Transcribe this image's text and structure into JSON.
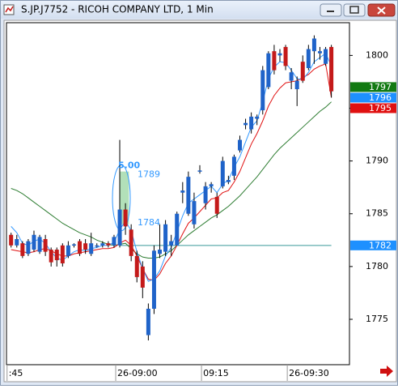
{
  "chart_data": {
    "type": "candlestick",
    "title": "S.JP.J7752 - RICOH COMPANY LTD, 1 Min",
    "categories": [
      ":45",
      null,
      null,
      null,
      null,
      null,
      null,
      null,
      null,
      null,
      null,
      null,
      null,
      null,
      null,
      null,
      null,
      null,
      null,
      "26-09:00",
      null,
      null,
      null,
      null,
      null,
      null,
      null,
      null,
      null,
      null,
      null,
      null,
      null,
      null,
      "09:15",
      null,
      null,
      null,
      null,
      null,
      null,
      null,
      null,
      null,
      null,
      null,
      null,
      null,
      null,
      "26-09:30",
      null,
      null,
      null,
      null,
      null,
      null,
      null
    ],
    "ohlc": {
      "up_color": "#1f63c9",
      "down_color": "#c41a1a",
      "open": [
        1783,
        1782,
        1782.2,
        1781.2,
        1781.6,
        1781.4,
        1782.6,
        1781.6,
        1781.6,
        1782,
        1781,
        1782,
        1782.4,
        1782.2,
        1781.2,
        1782,
        1782,
        1782.2,
        1782,
        1782,
        1785.4,
        1783.5,
        1781,
        1780,
        1773.5,
        1776,
        1781.2,
        1781.4,
        1782,
        1782,
        1787,
        1785,
        1784,
        1789,
        1786,
        1787.6,
        1786.6,
        1787.6,
        1788,
        1788.6,
        1791,
        1793.4,
        1793,
        1794,
        1794.8,
        1797,
        1800.4,
        1800,
        1800.8,
        1797.6,
        1796.8,
        1799.4,
        1798.8,
        1800.4,
        1800.2,
        1799.2,
        1800.8
      ],
      "high": [
        1783.2,
        1783,
        1782.4,
        1782.6,
        1783.4,
        1783,
        1783,
        1781.8,
        1781.8,
        1782.2,
        1782.4,
        1782.2,
        1782.6,
        1782.6,
        1783.2,
        1782.2,
        1782.4,
        1782.4,
        1783,
        1792,
        1786,
        1784,
        1781.5,
        1780.5,
        1776.5,
        1782,
        1784,
        1784.4,
        1783,
        1785.2,
        1788,
        1789,
        1787,
        1789.6,
        1788,
        1788,
        1787,
        1790.4,
        1788.6,
        1790.6,
        1792.4,
        1794,
        1794.6,
        1794.4,
        1799,
        1800.4,
        1801,
        1800.6,
        1801,
        1798.8,
        1798,
        1800,
        1801,
        1801.9,
        1800.8,
        1800.8,
        1801
      ],
      "low": [
        1781.8,
        1781.8,
        1780.8,
        1781,
        1781.4,
        1781.2,
        1781,
        1780,
        1780,
        1780,
        1780.8,
        1781.8,
        1781,
        1781.2,
        1781,
        1781.8,
        1781.8,
        1781.8,
        1781.8,
        1781.8,
        1783,
        1780.5,
        1778.5,
        1777,
        1773,
        1775.5,
        1780.8,
        1781,
        1781,
        1782,
        1786,
        1784.8,
        1783.6,
        1788.8,
        1785.4,
        1787,
        1784.6,
        1787.4,
        1787.8,
        1788.2,
        1790.8,
        1793,
        1792.6,
        1793.4,
        1794.4,
        1796.8,
        1798.2,
        1799.4,
        1798.6,
        1796.8,
        1795.2,
        1797.4,
        1798.6,
        1799.2,
        1799.6,
        1799,
        1796
      ],
      "close": [
        1782,
        1782.6,
        1781,
        1782.4,
        1783,
        1782.8,
        1781.4,
        1780.4,
        1780.6,
        1780.3,
        1782,
        1782.1,
        1781.2,
        1781.6,
        1782.2,
        1782,
        1782.2,
        1782,
        1782.8,
        1785.4,
        1783.8,
        1781,
        1779,
        1778,
        1776,
        1781.5,
        1781.6,
        1784,
        1782.4,
        1785,
        1787.2,
        1788.5,
        1786.2,
        1789.1,
        1787.6,
        1787.8,
        1785,
        1790,
        1788.2,
        1790.4,
        1792,
        1793.6,
        1794.2,
        1794.2,
        1798.6,
        1800.2,
        1798.6,
        1800.2,
        1799,
        1798.4,
        1797.6,
        1797.6,
        1800.6,
        1801.6,
        1800.4,
        1800.6,
        1796.6
      ]
    },
    "series": [
      {
        "color": "#2e7d32",
        "values": [
          1787.4,
          1787.2,
          1786.9,
          1786.5,
          1786.1,
          1785.7,
          1785.3,
          1784.9,
          1784.5,
          1784.1,
          1783.8,
          1783.5,
          1783.2,
          1783,
          1782.8,
          1782.5,
          1782.3,
          1782.1,
          1782,
          1782.1,
          1782.2,
          1781.7,
          1781.2,
          1780.9,
          1780.8,
          1780.8,
          1780.9,
          1781.2,
          1781.5,
          1782,
          1782.5,
          1783,
          1783.4,
          1783.8,
          1784.2,
          1784.6,
          1784.9,
          1785.3,
          1785.7,
          1786.2,
          1786.7,
          1787.3,
          1787.9,
          1788.5,
          1789.2,
          1789.9,
          1790.6,
          1791.2,
          1791.7,
          1792.2,
          1792.7,
          1793.2,
          1793.7,
          1794.2,
          1794.7,
          1795.1,
          1795.6
        ]
      },
      {
        "color": "#e01010",
        "values": [
          1781.6,
          1781.5,
          1781.4,
          1781.3,
          1781.4,
          1781.6,
          1781.7,
          1781.5,
          1781.2,
          1781,
          1781,
          1781.2,
          1781.3,
          1781.4,
          1781.5,
          1781.6,
          1781.7,
          1781.7,
          1781.8,
          1782.2,
          1782.5,
          1782,
          1781,
          1779.8,
          1778.8,
          1778.7,
          1779.3,
          1780.3,
          1781,
          1782,
          1783.1,
          1784.1,
          1784.6,
          1785.2,
          1785.8,
          1786.4,
          1786.5,
          1787,
          1787.2,
          1788,
          1789,
          1790.3,
          1791.6,
          1792.6,
          1793.8,
          1795.2,
          1796.2,
          1796.9,
          1797.4,
          1797.5,
          1797.6,
          1797.9,
          1798.2,
          1798.7,
          1799,
          1799.2,
          1796
        ]
      },
      {
        "color": "#3399ff",
        "values": [
          1783.8,
          1783.2,
          1782.2,
          1782,
          1782.4,
          1782.6,
          1782.2,
          1781.4,
          1780.8,
          1780.6,
          1781,
          1781.4,
          1781.6,
          1781.5,
          1781.7,
          1781.8,
          1782,
          1782,
          1782.3,
          1783.5,
          1784.3,
          1783.4,
          1781.4,
          1779.8,
          1778.6,
          1778.8,
          1779.6,
          1781,
          1781.8,
          1783.3,
          1784.8,
          1786,
          1786.4,
          1786.8,
          1787.2,
          1787.6,
          1787,
          1787.8,
          1788.2,
          1789.4,
          1790.4,
          1791.8,
          1793.2,
          1793.8,
          1795.6,
          1797.8,
          1798.9,
          1799.4,
          1799.3,
          1798.6,
          1797.8,
          1797.7,
          1798.4,
          1799.4,
          1799.8,
          1800.2,
          1799
        ]
      }
    ],
    "ylim": [
      1770.7,
      1803.1
    ],
    "yticks": [
      1775,
      1780,
      1785,
      1790,
      1795,
      1800
    ],
    "price_labels": [
      {
        "value": 1797,
        "color": "#127a12"
      },
      {
        "value": 1796,
        "color": "#1e90ff"
      },
      {
        "value": 1795,
        "color": "#e01010"
      },
      {
        "value": 1782,
        "color": "#1e90ff"
      }
    ],
    "level_line_color": "#3a9a9a",
    "measure": {
      "high": 1789,
      "low": 1784,
      "value": 5,
      "value_label": "5.00",
      "color": "#3399ff"
    }
  }
}
